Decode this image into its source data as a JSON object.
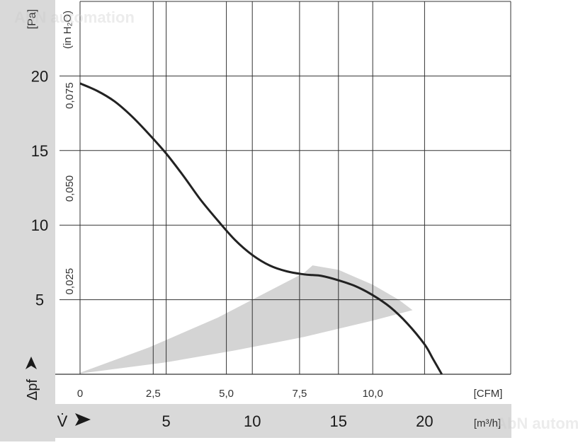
{
  "chart_data": {
    "type": "line",
    "title": "",
    "x_unit_primary": "[m³/h]",
    "x_unit_secondary": "[CFM]",
    "x_label_symbol": "V̇",
    "y_unit_primary": "[Pa]",
    "y_unit_secondary": "(in H₂O)",
    "y_label_symbol": "Δpf",
    "x_ticks_m3h": [
      5,
      10,
      15,
      20
    ],
    "x_ticks_cfm": [
      "0",
      "2,5",
      "5,0",
      "7,5",
      "10,0"
    ],
    "y_ticks_pa": [
      5,
      10,
      15,
      20
    ],
    "y_ticks_inh2o": [
      "0,025",
      "0,050",
      "0,075"
    ],
    "xlim_m3h": [
      0,
      25
    ],
    "ylim_pa": [
      0,
      25
    ],
    "grid": true,
    "series": [
      {
        "values_x_m3h": [
          0,
          1,
          2,
          3,
          4,
          5,
          6,
          7,
          8,
          9,
          10,
          11,
          12,
          13,
          13.5,
          14,
          15,
          16,
          17,
          18,
          19,
          20,
          20.5,
          21
        ],
        "values_y_pa": [
          19.5,
          19.0,
          18.3,
          17.3,
          16.1,
          14.8,
          13.3,
          11.7,
          10.3,
          9.0,
          8.0,
          7.3,
          6.9,
          6.7,
          6.65,
          6.6,
          6.3,
          5.9,
          5.3,
          4.5,
          3.4,
          2.0,
          1.0,
          0.0
        ]
      }
    ],
    "operating_region": {
      "upper_x_m3h": [
        0,
        4,
        8,
        11,
        13,
        13.5
      ],
      "upper_y_pa": [
        0.1,
        1.8,
        3.8,
        5.6,
        6.8,
        7.3
      ],
      "outer_x_m3h": [
        13.5,
        15,
        17,
        18.5,
        19.3
      ],
      "outer_y_pa": [
        7.3,
        7.0,
        6.0,
        5.0,
        4.3
      ],
      "lower_x_m3h": [
        19.3,
        17,
        13,
        9,
        5,
        0
      ],
      "lower_y_pa": [
        4.3,
        3.6,
        2.5,
        1.6,
        0.8,
        0.05
      ]
    },
    "watermark": "AbN automation"
  }
}
